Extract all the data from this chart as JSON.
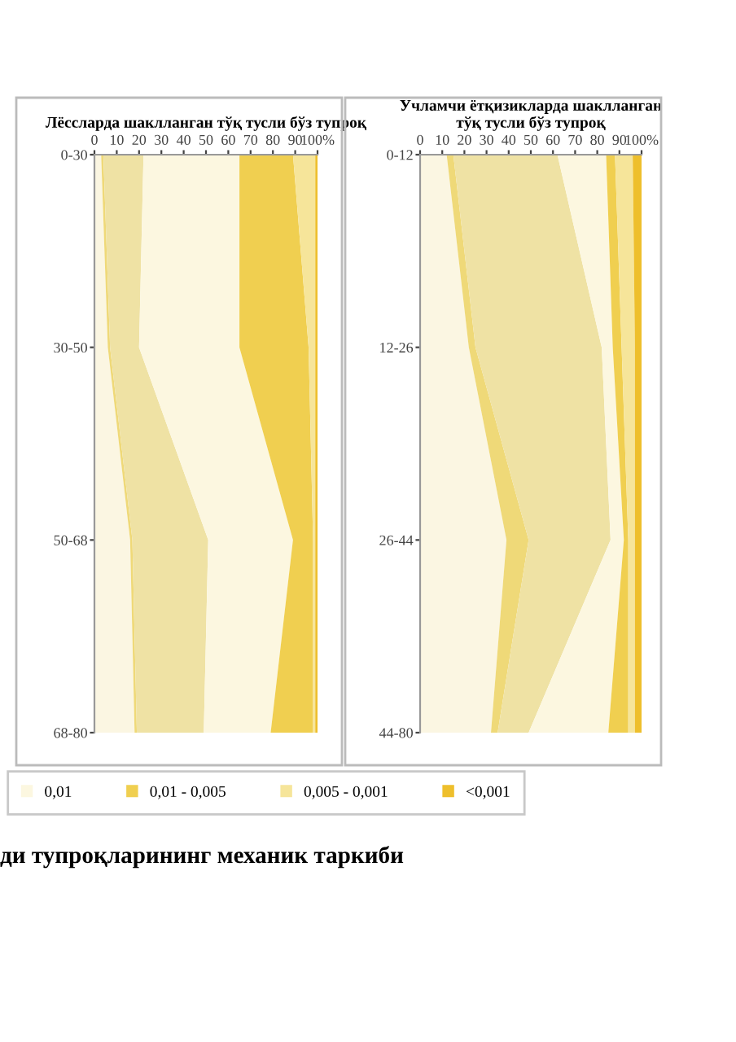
{
  "chart_data": [
    {
      "type": "area",
      "orientation": "horizontal",
      "stacked": true,
      "title": "Лёссларда шаклланган тўқ тусли бўз тупроқ",
      "categories": [
        "0-30",
        "30-50",
        "50-68",
        "68-80"
      ],
      "xlim": [
        0,
        100
      ],
      "xticks": [
        0,
        10,
        20,
        30,
        40,
        50,
        60,
        70,
        80,
        90,
        {
          "value": 100,
          "label": "100%"
        }
      ],
      "legend": "bottom",
      "annotations": [
        "ди тупроқларининг механик таркиби"
      ],
      "series": [
        {
          "color": "#fbf6e2",
          "values": [
            3,
            6,
            16,
            18
          ]
        },
        {
          "color": "#efd978",
          "values": [
            1,
            1,
            1,
            1
          ]
        },
        {
          "color": "#efe2a4",
          "values": [
            18,
            13,
            34,
            30
          ]
        },
        {
          "name": "0,01",
          "color": "#fcf7e0",
          "values": [
            43,
            45,
            38,
            30
          ]
        },
        {
          "name": "0,01 - 0,005",
          "color": "#f0cf50",
          "values": [
            24,
            31,
            9,
            19
          ]
        },
        {
          "name": "0,005 - 0,001",
          "color": "#f6e59a",
          "values": [
            10,
            3,
            1,
            1
          ]
        },
        {
          "name": "<0,001",
          "color": "#eebf2c",
          "values": [
            1,
            1,
            1,
            1
          ]
        }
      ]
    },
    {
      "type": "area",
      "orientation": "horizontal",
      "stacked": true,
      "title": "Учламчи ётқизикларда шаклланган\nтўқ тусли бўз тупроқ",
      "categories": [
        "0-12",
        "12-26",
        "26-44",
        "44-80"
      ],
      "xlim": [
        0,
        100
      ],
      "xticks": [
        0,
        10,
        20,
        30,
        40,
        50,
        60,
        70,
        80,
        90,
        {
          "value": 100,
          "label": "100%"
        }
      ],
      "series": [
        {
          "color": "#fbf6e2",
          "values": [
            12,
            22,
            39,
            32
          ]
        },
        {
          "color": "#efd978",
          "values": [
            3,
            3,
            10,
            3
          ]
        },
        {
          "color": "#efe2a4",
          "values": [
            47,
            57,
            37,
            14
          ]
        },
        {
          "color": "#fcf7e0",
          "values": [
            22,
            5,
            6,
            36
          ]
        },
        {
          "color": "#f0cf50",
          "values": [
            4,
            4,
            2,
            9
          ]
        },
        {
          "color": "#f6e59a",
          "values": [
            8,
            6,
            3,
            3
          ]
        },
        {
          "color": "#eebf2c",
          "values": [
            4,
            3,
            3,
            3
          ]
        }
      ]
    }
  ]
}
